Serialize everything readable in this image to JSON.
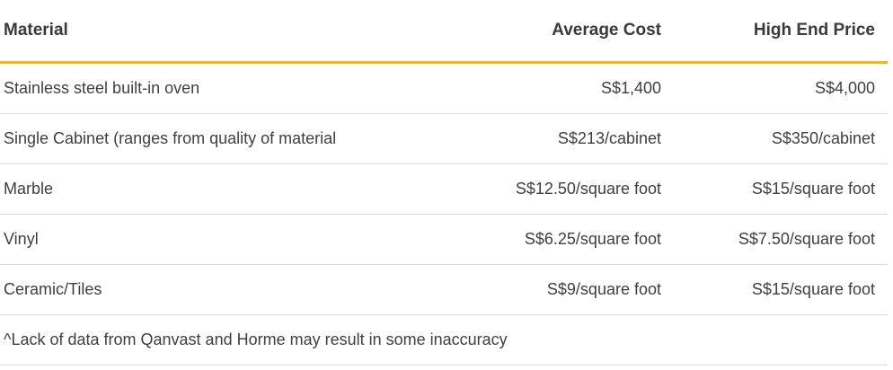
{
  "table": {
    "headers": [
      "Material",
      "Average Cost",
      "High End Price"
    ],
    "rows": [
      [
        "Stainless steel built-in oven",
        "S$1,400",
        "S$4,000"
      ],
      [
        "Single Cabinet (ranges from quality of material",
        "S$213/cabinet",
        "S$350/cabinet"
      ],
      [
        "Marble",
        "S$12.50/square foot",
        "S$15/square foot"
      ],
      [
        "Vinyl",
        "S$6.25/square foot",
        "S$7.50/square foot"
      ],
      [
        "Ceramic/Tiles",
        "S$9/square foot",
        "S$15/square foot"
      ]
    ],
    "footnote": "^Lack of data from Qanvast and Horme may result in some inaccuracy"
  },
  "colors": {
    "header_rule": "#f4b41a",
    "row_rule": "#d9d9d9",
    "text": "#3a3a3a"
  }
}
